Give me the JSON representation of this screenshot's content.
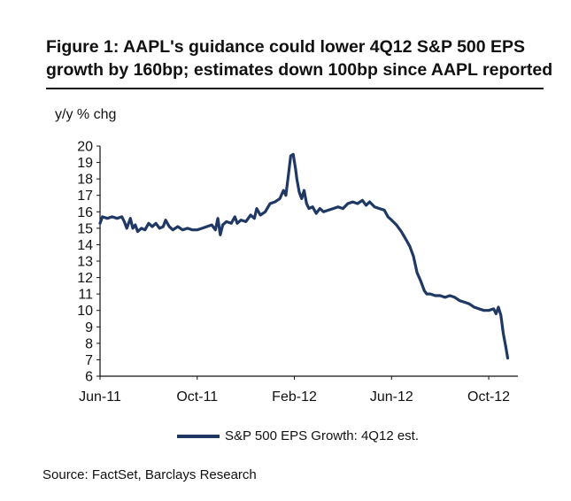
{
  "chart_data": {
    "type": "line",
    "title": "Figure 1: AAPL's guidance could lower 4Q12 S&P 500 EPS growth by 160bp; estimates down 100bp since AAPL reported",
    "ylabel": "y/y % chg",
    "xlabel": "",
    "ylim": [
      6,
      20
    ],
    "yticks": [
      "6",
      "7",
      "8",
      "9",
      "10",
      "11",
      "12",
      "13",
      "14",
      "15",
      "16",
      "17",
      "18",
      "19",
      "20"
    ],
    "xticks": [
      {
        "label": "Jun-11",
        "t": 0
      },
      {
        "label": "Oct-11",
        "t": 4
      },
      {
        "label": "Feb-12",
        "t": 8
      },
      {
        "label": "Jun-12",
        "t": 12
      },
      {
        "label": "Oct-12",
        "t": 16
      }
    ],
    "xlim": [
      0,
      17.2
    ],
    "series": [
      {
        "name": "S&P 500 EPS Growth: 4Q12 est.",
        "color": "#1f3864",
        "points": [
          [
            0.0,
            15.3
          ],
          [
            0.1,
            15.7
          ],
          [
            0.3,
            15.6
          ],
          [
            0.5,
            15.7
          ],
          [
            0.7,
            15.6
          ],
          [
            0.9,
            15.7
          ],
          [
            1.0,
            15.4
          ],
          [
            1.1,
            15.0
          ],
          [
            1.25,
            15.6
          ],
          [
            1.35,
            15.0
          ],
          [
            1.45,
            15.2
          ],
          [
            1.55,
            14.8
          ],
          [
            1.7,
            15.0
          ],
          [
            1.85,
            14.9
          ],
          [
            2.0,
            15.3
          ],
          [
            2.15,
            15.1
          ],
          [
            2.3,
            15.3
          ],
          [
            2.45,
            15.0
          ],
          [
            2.6,
            15.1
          ],
          [
            2.7,
            15.5
          ],
          [
            2.85,
            15.1
          ],
          [
            3.0,
            14.9
          ],
          [
            3.2,
            15.1
          ],
          [
            3.4,
            14.9
          ],
          [
            3.6,
            15.0
          ],
          [
            3.8,
            14.9
          ],
          [
            4.0,
            14.9
          ],
          [
            4.2,
            15.0
          ],
          [
            4.4,
            15.1
          ],
          [
            4.6,
            15.2
          ],
          [
            4.75,
            14.9
          ],
          [
            4.85,
            15.6
          ],
          [
            4.95,
            14.6
          ],
          [
            5.05,
            15.2
          ],
          [
            5.2,
            15.4
          ],
          [
            5.4,
            15.3
          ],
          [
            5.55,
            15.7
          ],
          [
            5.65,
            15.3
          ],
          [
            5.8,
            15.5
          ],
          [
            6.0,
            15.4
          ],
          [
            6.2,
            15.8
          ],
          [
            6.35,
            15.6
          ],
          [
            6.45,
            16.2
          ],
          [
            6.6,
            15.8
          ],
          [
            6.8,
            16.0
          ],
          [
            7.0,
            16.5
          ],
          [
            7.2,
            16.6
          ],
          [
            7.4,
            16.8
          ],
          [
            7.55,
            17.3
          ],
          [
            7.65,
            17.0
          ],
          [
            7.75,
            18.2
          ],
          [
            7.85,
            19.4
          ],
          [
            7.95,
            19.5
          ],
          [
            8.05,
            18.6
          ],
          [
            8.1,
            18.0
          ],
          [
            8.2,
            17.2
          ],
          [
            8.3,
            16.8
          ],
          [
            8.4,
            17.3
          ],
          [
            8.5,
            16.5
          ],
          [
            8.6,
            16.2
          ],
          [
            8.75,
            16.3
          ],
          [
            8.9,
            15.9
          ],
          [
            9.05,
            16.2
          ],
          [
            9.2,
            16.0
          ],
          [
            9.4,
            16.1
          ],
          [
            9.6,
            16.2
          ],
          [
            9.8,
            16.3
          ],
          [
            10.0,
            16.2
          ],
          [
            10.2,
            16.5
          ],
          [
            10.4,
            16.6
          ],
          [
            10.6,
            16.5
          ],
          [
            10.8,
            16.7
          ],
          [
            10.95,
            16.4
          ],
          [
            11.1,
            16.6
          ],
          [
            11.3,
            16.3
          ],
          [
            11.5,
            16.2
          ],
          [
            11.7,
            16.1
          ],
          [
            11.85,
            15.7
          ],
          [
            12.0,
            15.5
          ],
          [
            12.2,
            15.2
          ],
          [
            12.4,
            14.8
          ],
          [
            12.6,
            14.3
          ],
          [
            12.75,
            13.9
          ],
          [
            12.9,
            13.3
          ],
          [
            13.05,
            12.3
          ],
          [
            13.2,
            11.8
          ],
          [
            13.35,
            11.2
          ],
          [
            13.45,
            11.0
          ],
          [
            13.6,
            11.0
          ],
          [
            13.8,
            10.9
          ],
          [
            14.0,
            10.9
          ],
          [
            14.2,
            10.8
          ],
          [
            14.4,
            10.9
          ],
          [
            14.6,
            10.8
          ],
          [
            14.8,
            10.6
          ],
          [
            15.0,
            10.5
          ],
          [
            15.2,
            10.4
          ],
          [
            15.4,
            10.2
          ],
          [
            15.6,
            10.1
          ],
          [
            15.8,
            10.0
          ],
          [
            16.0,
            10.0
          ],
          [
            16.2,
            10.1
          ],
          [
            16.3,
            9.8
          ],
          [
            16.4,
            10.2
          ],
          [
            16.5,
            9.7
          ],
          [
            16.6,
            8.6
          ],
          [
            16.7,
            7.8
          ],
          [
            16.78,
            7.1
          ]
        ]
      }
    ],
    "legend": {
      "position": "bottom-center",
      "label": "S&P 500 EPS Growth: 4Q12 est."
    },
    "source": "Source: FactSet, Barclays Research"
  }
}
